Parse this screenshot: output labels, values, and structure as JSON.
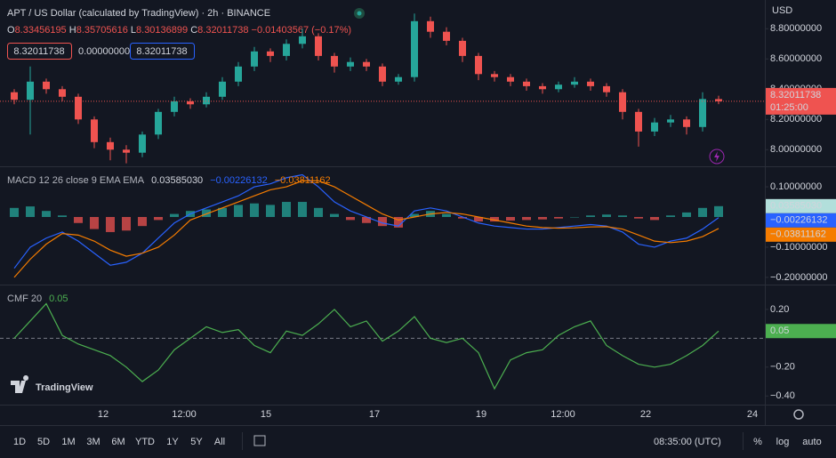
{
  "header": {
    "symbol": "APT / US Dollar (calculated by TradingView) · 2h · BINANCE",
    "ohlc": [
      {
        "key": "O",
        "value": "8.33456195"
      },
      {
        "key": "H",
        "value": "8.35705616"
      },
      {
        "key": "L",
        "value": "8.30136899"
      },
      {
        "key": "C",
        "value": "8.32011738"
      }
    ],
    "change": "−0.01403567 (−0.17%)",
    "boxes": [
      "8.32011738",
      "0.00000000",
      "8.32011738"
    ],
    "currency": "USD"
  },
  "price_label": {
    "price": "8.32011738",
    "countdown": "01:25:00"
  },
  "time_axis": [
    "12",
    "12:00",
    "15",
    "17",
    "19",
    "12:00",
    "22",
    "24"
  ],
  "watermark": "TradingView",
  "toolbar": {
    "ranges": [
      "1D",
      "5D",
      "1M",
      "3M",
      "6M",
      "YTD",
      "1Y",
      "5Y",
      "All"
    ],
    "clock": "08:35:00 (UTC)",
    "options": [
      "%",
      "log",
      "auto"
    ]
  },
  "chart_data": [
    {
      "type": "candlestick",
      "up_color": "#26a69a",
      "down_color": "#ef5350",
      "ylim": [
        7.89,
        8.99
      ],
      "yticks": [
        {
          "value": 8.8,
          "label": "8.80000000"
        },
        {
          "value": 8.6,
          "label": "8.60000000"
        },
        {
          "value": 8.4,
          "label": "8.40000000"
        },
        {
          "value": 8.2,
          "label": "8.20000000"
        },
        {
          "value": 8.0,
          "label": "8.00000000"
        }
      ],
      "open": [
        8.38,
        8.33,
        8.45,
        8.4,
        8.35,
        8.2,
        8.05,
        8.0,
        7.98,
        8.1,
        8.25,
        8.32,
        8.3,
        8.35,
        8.45,
        8.55,
        8.65,
        8.62,
        8.7,
        8.75,
        8.62,
        8.55,
        8.58,
        8.55,
        8.45,
        8.48,
        8.85,
        8.78,
        8.72,
        8.62,
        8.5,
        8.48,
        8.45,
        8.42,
        8.4,
        8.43,
        8.45,
        8.42,
        8.38,
        8.25,
        8.12,
        8.18,
        8.2,
        8.15,
        8.33456195
      ],
      "high": [
        8.4,
        8.55,
        8.47,
        8.42,
        8.37,
        8.22,
        8.08,
        8.03,
        8.12,
        8.27,
        8.35,
        8.34,
        8.38,
        8.48,
        8.58,
        8.68,
        8.67,
        8.73,
        8.8,
        8.77,
        8.64,
        8.61,
        8.6,
        8.57,
        8.5,
        8.9,
        8.88,
        8.81,
        8.74,
        8.64,
        8.52,
        8.5,
        8.47,
        8.44,
        8.45,
        8.48,
        8.47,
        8.44,
        8.4,
        8.27,
        8.21,
        8.23,
        8.22,
        8.38,
        8.35705616
      ],
      "low": [
        8.3,
        8.1,
        8.37,
        8.32,
        8.17,
        8.01,
        7.93,
        7.91,
        7.95,
        8.07,
        8.22,
        8.27,
        8.28,
        8.33,
        8.42,
        8.52,
        8.58,
        8.59,
        8.67,
        8.59,
        8.51,
        8.52,
        8.52,
        8.42,
        8.43,
        8.45,
        8.74,
        8.69,
        8.58,
        8.46,
        8.45,
        8.42,
        8.39,
        8.37,
        8.38,
        8.41,
        8.39,
        8.35,
        8.2,
        8.02,
        8.09,
        8.15,
        8.1,
        8.12,
        8.30136899
      ],
      "close": [
        8.33,
        8.45,
        8.4,
        8.35,
        8.2,
        8.05,
        8.0,
        7.98,
        8.1,
        8.25,
        8.32,
        8.3,
        8.35,
        8.45,
        8.55,
        8.65,
        8.62,
        8.7,
        8.75,
        8.62,
        8.55,
        8.58,
        8.55,
        8.45,
        8.48,
        8.85,
        8.78,
        8.72,
        8.62,
        8.5,
        8.48,
        8.45,
        8.42,
        8.4,
        8.43,
        8.45,
        8.42,
        8.38,
        8.25,
        8.12,
        8.18,
        8.2,
        8.15,
        8.335,
        8.32011738
      ]
    },
    {
      "type": "macd",
      "title": "MACD 12 26 close 9 EMA EMA",
      "ylim": [
        -0.224,
        0.165
      ],
      "yticks": [
        {
          "value": 0.1,
          "label": "0.10000000"
        },
        {
          "value": -0.1,
          "label": "−0.10000000"
        },
        {
          "value": -0.2,
          "label": "−0.20000000"
        }
      ],
      "series": [
        {
          "style": "histogram",
          "color": "#26a69a",
          "neg_color": "#ef5350",
          "box_color": "#b2dfdb",
          "last_label": "0.03585030",
          "values": [
            0.03,
            0.035,
            0.02,
            0.005,
            -0.02,
            -0.04,
            -0.05,
            -0.045,
            -0.03,
            -0.01,
            0.01,
            0.02,
            0.025,
            0.03,
            0.04,
            0.045,
            0.04,
            0.05,
            0.05,
            0.03,
            0.01,
            -0.01,
            -0.02,
            -0.03,
            -0.035,
            0.01,
            0.02,
            0.01,
            -0.005,
            -0.015,
            -0.015,
            -0.012,
            -0.01,
            -0.008,
            -0.005,
            0.0,
            0.005,
            0.008,
            0.005,
            -0.005,
            -0.01,
            0.005,
            0.015,
            0.03,
            0.0358503
          ]
        },
        {
          "style": "line",
          "color": "#2962ff",
          "last_label": "−0.00226132",
          "values": [
            -0.17,
            -0.1,
            -0.07,
            -0.05,
            -0.08,
            -0.12,
            -0.16,
            -0.15,
            -0.12,
            -0.07,
            -0.02,
            0.01,
            0.03,
            0.05,
            0.07,
            0.1,
            0.11,
            0.13,
            0.14,
            0.1,
            0.05,
            0.02,
            0.0,
            -0.02,
            -0.03,
            0.02,
            0.03,
            0.02,
            0.0,
            -0.02,
            -0.03,
            -0.035,
            -0.04,
            -0.04,
            -0.035,
            -0.03,
            -0.025,
            -0.03,
            -0.05,
            -0.09,
            -0.1,
            -0.08,
            -0.07,
            -0.04,
            -0.00226132
          ]
        },
        {
          "style": "line",
          "color": "#f57c00",
          "last_label": "−0.03811162",
          "values": [
            -0.2,
            -0.14,
            -0.09,
            -0.055,
            -0.06,
            -0.08,
            -0.11,
            -0.13,
            -0.12,
            -0.1,
            -0.06,
            -0.01,
            0.01,
            0.03,
            0.05,
            0.07,
            0.09,
            0.1,
            0.12,
            0.12,
            0.1,
            0.07,
            0.04,
            0.01,
            -0.01,
            0.0,
            0.01,
            0.015,
            0.01,
            0.0,
            -0.01,
            -0.02,
            -0.03,
            -0.035,
            -0.037,
            -0.036,
            -0.033,
            -0.032,
            -0.04,
            -0.06,
            -0.08,
            -0.085,
            -0.08,
            -0.065,
            -0.03811162
          ]
        }
      ]
    },
    {
      "type": "line",
      "title": "CMF 20",
      "ylim": [
        -0.46,
        0.366
      ],
      "hlines": [
        0
      ],
      "yticks": [
        {
          "value": 0.2,
          "label": "0.20"
        },
        {
          "value": -0.2,
          "label": "−0.20"
        },
        {
          "value": -0.4,
          "label": "−0.40"
        }
      ],
      "series": [
        {
          "style": "line",
          "color": "#4caf50",
          "box_color": "#4caf50",
          "last_label": "0.05",
          "values": [
            0.0,
            0.12,
            0.24,
            0.02,
            -0.04,
            -0.08,
            -0.12,
            -0.2,
            -0.3,
            -0.22,
            -0.08,
            0.0,
            0.08,
            0.04,
            0.06,
            -0.05,
            -0.1,
            0.05,
            0.02,
            0.1,
            0.2,
            0.08,
            0.12,
            -0.02,
            0.05,
            0.15,
            0.0,
            -0.03,
            0.0,
            -0.1,
            -0.35,
            -0.15,
            -0.1,
            -0.08,
            0.02,
            0.08,
            0.12,
            -0.05,
            -0.12,
            -0.18,
            -0.2,
            -0.18,
            -0.12,
            -0.05,
            0.05
          ]
        }
      ]
    }
  ]
}
